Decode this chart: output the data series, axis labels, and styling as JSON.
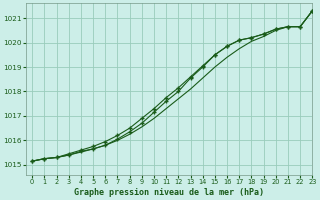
{
  "title": "Graphe pression niveau de la mer (hPa)",
  "bg_color": "#cceee8",
  "grid_color": "#99ccbb",
  "line_color": "#1a5c1a",
  "marker_color": "#1a5c1a",
  "xlim": [
    -0.5,
    23
  ],
  "ylim": [
    1014.6,
    1021.6
  ],
  "xticks": [
    0,
    1,
    2,
    3,
    4,
    5,
    6,
    7,
    8,
    9,
    10,
    11,
    12,
    13,
    14,
    15,
    16,
    17,
    18,
    19,
    20,
    21,
    22,
    23
  ],
  "yticks": [
    1015,
    1016,
    1017,
    1018,
    1019,
    1020,
    1021
  ],
  "series1": [
    1015.15,
    1015.25,
    1015.3,
    1015.4,
    1015.55,
    1015.65,
    1015.8,
    1016.05,
    1016.35,
    1016.7,
    1017.15,
    1017.6,
    1018.0,
    1018.55,
    1019.0,
    1019.5,
    1019.85,
    1020.1,
    1020.2,
    1020.35,
    1020.55,
    1020.65,
    1020.65,
    1021.3
  ],
  "series2": [
    1015.15,
    1015.25,
    1015.3,
    1015.45,
    1015.6,
    1015.75,
    1015.95,
    1016.2,
    1016.5,
    1016.9,
    1017.3,
    1017.75,
    1018.15,
    1018.6,
    1019.05,
    1019.5,
    1019.85,
    1020.1,
    1020.2,
    1020.35,
    1020.55,
    1020.65,
    1020.65,
    1021.3
  ],
  "series3": [
    1015.15,
    1015.25,
    1015.3,
    1015.4,
    1015.52,
    1015.65,
    1015.8,
    1016.0,
    1016.25,
    1016.55,
    1016.9,
    1017.3,
    1017.7,
    1018.1,
    1018.55,
    1019.0,
    1019.4,
    1019.75,
    1020.05,
    1020.25,
    1020.5,
    1020.65,
    1020.65,
    1021.3
  ]
}
